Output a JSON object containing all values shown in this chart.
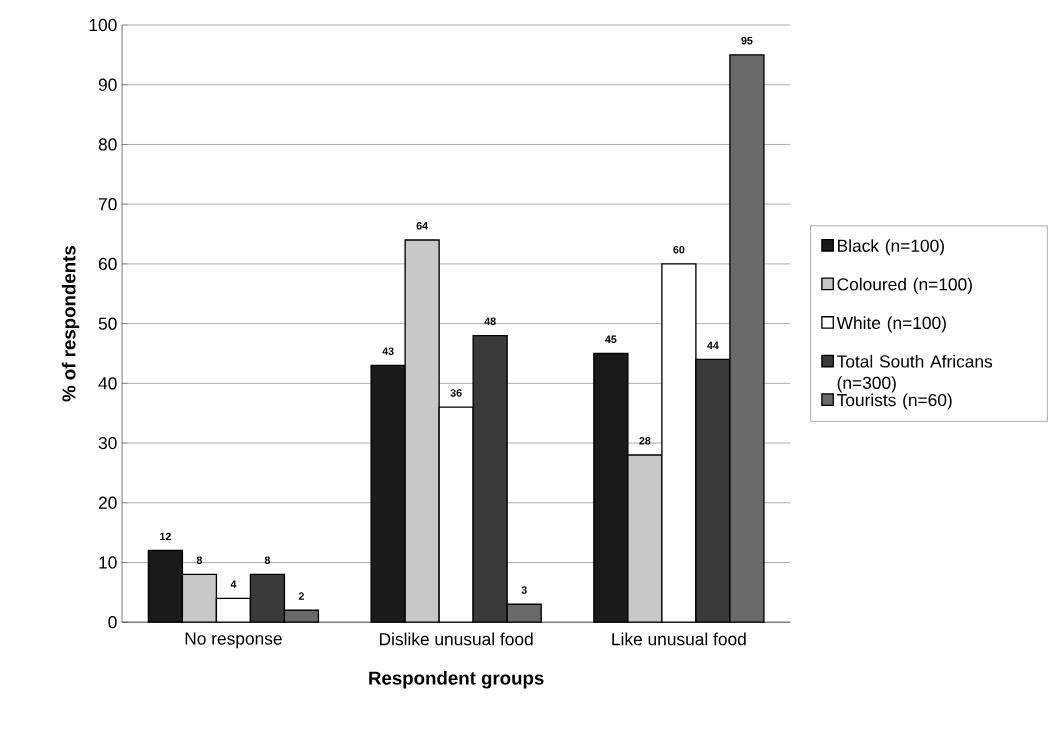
{
  "chart_data": {
    "type": "bar",
    "xlabel": "Respondent groups",
    "ylabel": "% of respondents",
    "categories": [
      "No response",
      "Dislike unusual food",
      "Like unusual food"
    ],
    "series": [
      {
        "name": "Black (n=100)",
        "color": "#1a1a1a",
        "values": [
          12,
          43,
          45
        ]
      },
      {
        "name": "Coloured (n=100)",
        "color": "#c8c8c8",
        "values": [
          8,
          64,
          28
        ]
      },
      {
        "name": "White (n=100)",
        "color": "#ffffff",
        "values": [
          4,
          36,
          60
        ]
      },
      {
        "name": "Total South Africans (n=300)",
        "color": "#3a3a3a",
        "values": [
          8,
          48,
          44
        ]
      },
      {
        "name": "Tourists (n=60)",
        "color": "#6a6a6a",
        "values": [
          2,
          3,
          95
        ]
      }
    ],
    "ylim": [
      0,
      100
    ],
    "yticks": [
      0,
      10,
      20,
      30,
      40,
      50,
      60,
      70,
      80,
      90,
      100
    ],
    "grid": "y",
    "legend": "right",
    "data_labels": true
  }
}
